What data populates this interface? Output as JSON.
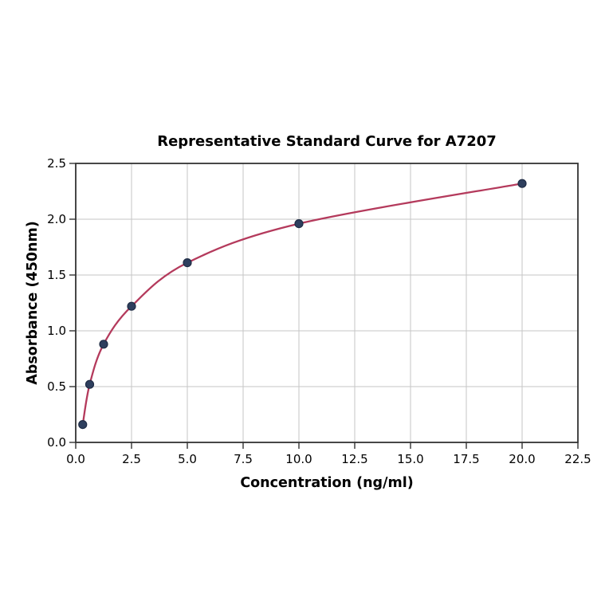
{
  "chart_data": {
    "type": "scatter",
    "title": "Representative Standard Curve for A7207",
    "xlabel": "Concentration (ng/ml)",
    "ylabel": "Absorbance (450nm)",
    "x": [
      0.313,
      0.625,
      1.25,
      2.5,
      5,
      10,
      20
    ],
    "y": [
      0.16,
      0.52,
      0.88,
      1.22,
      1.61,
      1.96,
      2.32
    ],
    "xlim": [
      0,
      22.5
    ],
    "ylim": [
      0,
      2.5
    ],
    "xticks": [
      "0.0",
      "2.5",
      "5.0",
      "7.5",
      "10.0",
      "12.5",
      "15.0",
      "17.5",
      "20.0",
      "22.5"
    ],
    "yticks": [
      "0.0",
      "0.5",
      "1.0",
      "1.5",
      "2.0",
      "2.5"
    ],
    "grid": true,
    "legend": "none",
    "colors": {
      "fit_line": "#b43a5c",
      "marker_fill": "#2e3f5e",
      "marker_edge": "#1f2c45",
      "grid_line": "#c6c6c6",
      "spine": "#333333",
      "background": "#ffffff",
      "text": "#000000"
    }
  }
}
